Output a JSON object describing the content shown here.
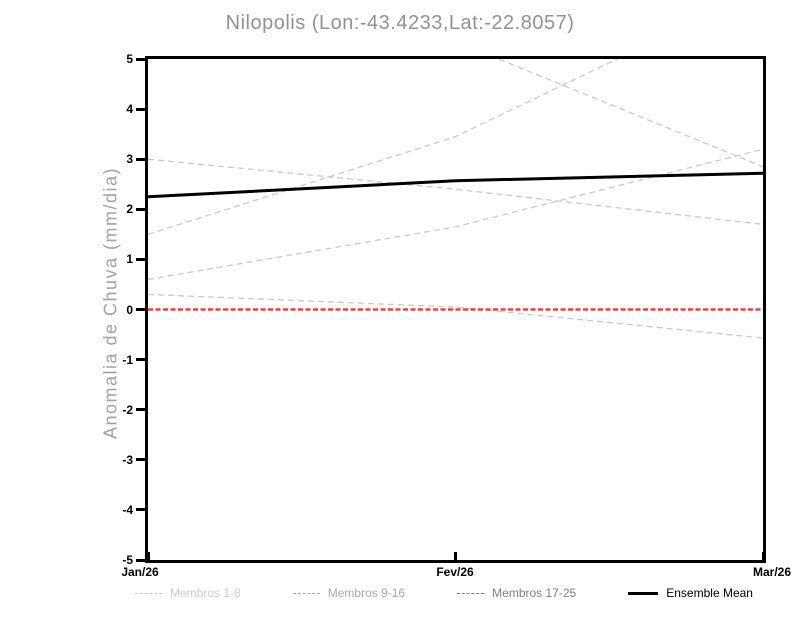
{
  "chart_data": {
    "type": "line",
    "title": "Nilopolis (Lon:-43.4233,Lat:-22.8057)",
    "ylabel": "Anomalia de Chuva (mm/dia)",
    "ylim": [
      -5,
      5
    ],
    "yticks": [
      "5",
      "4",
      "3",
      "2",
      "1",
      "0",
      "-1",
      "-2",
      "-3",
      "-4",
      "-5"
    ],
    "xticks": [
      "Jan/26",
      "Fev/26",
      "Mar/26"
    ],
    "grid": false,
    "series": [
      {
        "name": "ensemble-member-line",
        "group": "membros",
        "color": "#c9c9c9",
        "style": "dashed",
        "width": 1.3,
        "values": [
          3.0,
          2.4,
          1.7
        ]
      },
      {
        "name": "ensemble-member-line",
        "group": "membros",
        "color": "#c9c9c9",
        "style": "dashed",
        "width": 1.3,
        "values": [
          1.5,
          3.45,
          6.4
        ]
      },
      {
        "name": "ensemble-member-line",
        "group": "membros",
        "color": "#c9c9c9",
        "style": "dashed",
        "width": 1.3,
        "values": [
          6.5,
          5.35,
          2.85
        ]
      },
      {
        "name": "ensemble-member-line",
        "group": "membros",
        "color": "#c9c9c9",
        "style": "dashed",
        "width": 1.3,
        "values": [
          0.6,
          1.65,
          3.2
        ]
      },
      {
        "name": "ensemble-member-line",
        "group": "membros",
        "color": "#c9c9c9",
        "style": "dashed",
        "width": 1.3,
        "values": [
          0.3,
          0.05,
          -0.57
        ]
      },
      {
        "name": "zero-reference-line",
        "group": "reference",
        "color": "#fa3c3c",
        "style": "dashed",
        "width": 2.6,
        "values": [
          0,
          0,
          0
        ]
      },
      {
        "name": "ensemble-mean-line",
        "group": "mean",
        "color": "#000000",
        "style": "solid",
        "width": 3,
        "values": [
          2.25,
          2.57,
          2.72
        ]
      }
    ],
    "legend": {
      "position": "bottom",
      "items": [
        {
          "label": "Membros 1-8",
          "color": "#cbcbcb",
          "style": "dashed"
        },
        {
          "label": "Membros 9-16",
          "color": "#a9a9a9",
          "style": "dashed"
        },
        {
          "label": "Membros 17-25",
          "color": "#7e7e7e",
          "style": "dashed"
        },
        {
          "label": "Ensemble Mean",
          "color": "#000000",
          "style": "solid"
        }
      ]
    }
  }
}
